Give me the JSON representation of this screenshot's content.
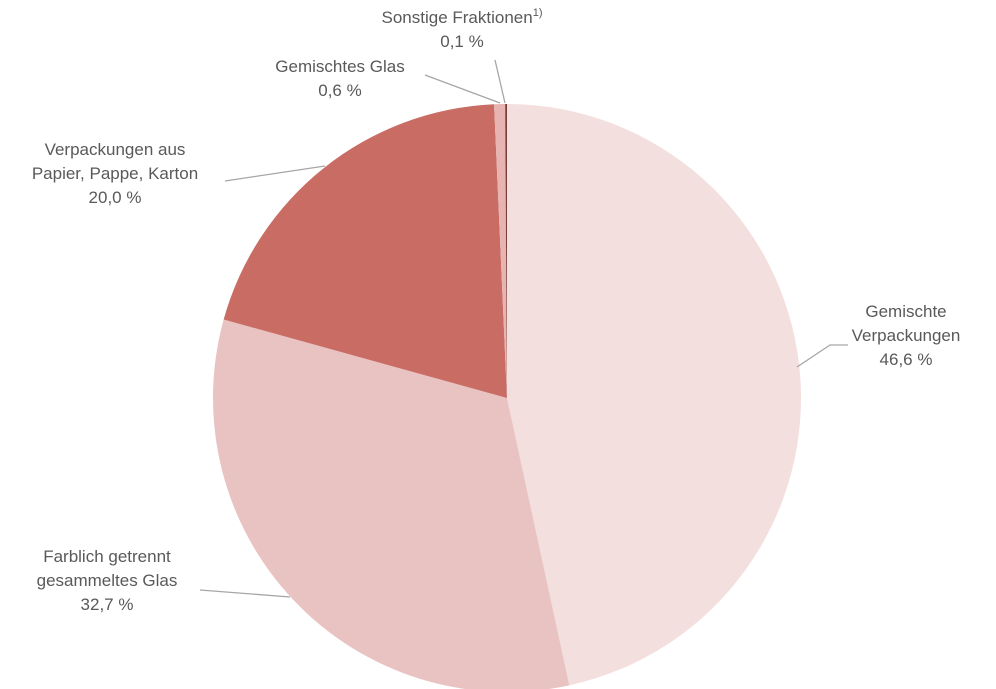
{
  "chart_data": {
    "type": "pie",
    "categories": [
      "Gemischte Verpackungen",
      "Farblich getrennt gesammeltes Glas",
      "Verpackungen aus Papier, Pappe, Karton",
      "Gemischtes Glas",
      "Sonstige Fraktionen"
    ],
    "values": [
      46.6,
      32.7,
      20.0,
      0.6,
      0.1
    ],
    "value_labels": [
      "46,6 %",
      "32,7 %",
      "20,0 %",
      "0,6 %",
      "0,1 %"
    ],
    "colors": [
      "#f3dfde",
      "#e9c3c2",
      "#c96c64",
      "#e7b4b2",
      "#7b3d38"
    ],
    "footnote": "1)"
  }
}
